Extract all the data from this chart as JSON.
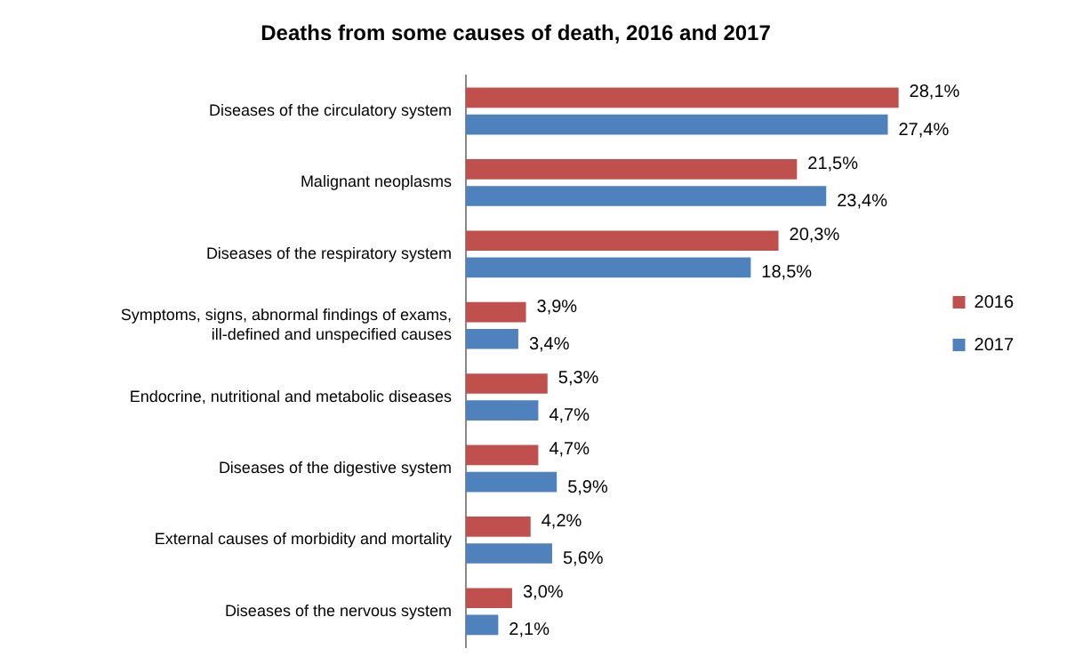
{
  "chart_data": {
    "type": "bar",
    "orientation": "horizontal",
    "title": "Deaths from some causes of death, 2016 and 2017",
    "categories": [
      "Diseases of the circulatory system",
      "Malignant neoplasms",
      "Diseases of the respiratory system",
      "Symptoms, signs, abnormal findings of exams, ill-defined and unspecified causes",
      "Endocrine, nutritional and metabolic diseases",
      "Diseases of the digestive system",
      "External causes of morbidity and mortality",
      "Diseases of the nervous system"
    ],
    "series": [
      {
        "name": "2016",
        "color": "#c0504d",
        "values": [
          28.1,
          21.5,
          20.3,
          3.9,
          5.3,
          4.7,
          4.2,
          3.0
        ],
        "value_labels": [
          "28,1%",
          "21,5%",
          "20,3%",
          "3,9%",
          "5,3%",
          "4,7%",
          "4,2%",
          "3,0%"
        ]
      },
      {
        "name": "2017",
        "color": "#4f81bd",
        "values": [
          27.4,
          23.4,
          18.5,
          3.4,
          4.7,
          5.9,
          5.6,
          2.1
        ],
        "value_labels": [
          "27,4%",
          "23,4%",
          "18,5%",
          "3,4%",
          "4,7%",
          "5,9%",
          "5,6%",
          "2,1%"
        ]
      }
    ],
    "legend": "right",
    "tick_labels": "y"
  }
}
